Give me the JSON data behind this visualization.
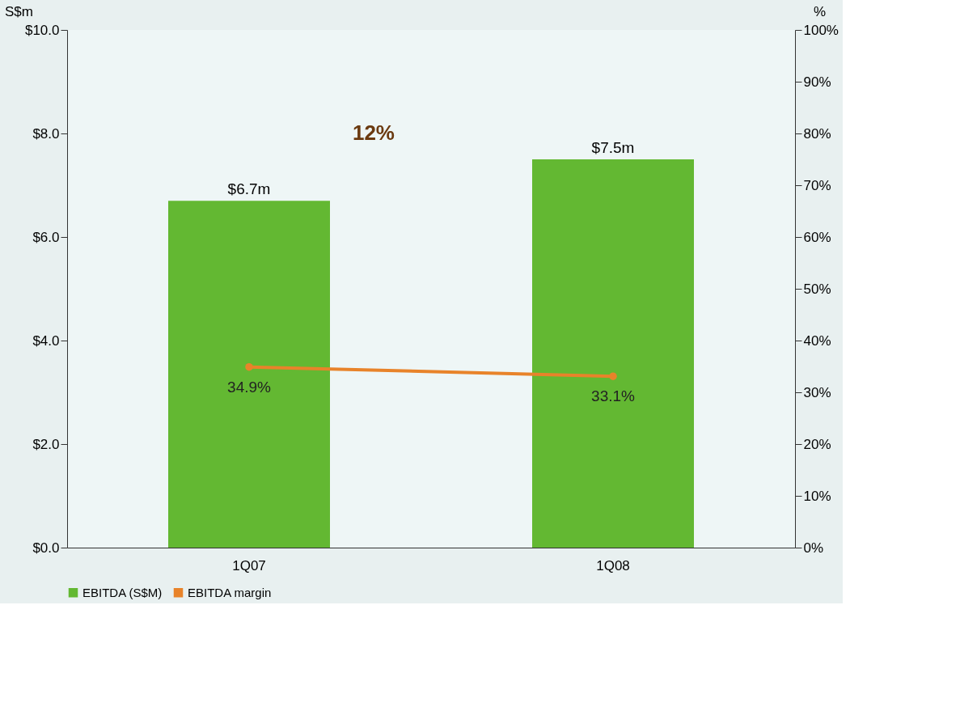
{
  "chart_data": {
    "type": "bar",
    "categories": [
      "1Q07",
      "1Q08"
    ],
    "ylabel": "S$m",
    "y2label": "%",
    "series": [
      {
        "name": "EBITDA (S$M)",
        "color": "#63b832",
        "values": [
          6.7,
          7.5
        ],
        "value_labels": [
          "$6.7m",
          "$7.5m"
        ]
      },
      {
        "name": "EBITDA margin",
        "type": "line",
        "axis": "y2",
        "color": "#e8832a",
        "values": [
          34.9,
          33.1
        ],
        "value_labels": [
          "34.9%",
          "33.1%"
        ]
      }
    ],
    "ylim": [
      0,
      10
    ],
    "yticks": [
      {
        "value": 0,
        "label": "$0.0"
      },
      {
        "value": 2,
        "label": "$2.0"
      },
      {
        "value": 4,
        "label": "$4.0"
      },
      {
        "value": 6,
        "label": "$6.0"
      },
      {
        "value": 8,
        "label": "$8.0"
      },
      {
        "value": 10,
        "label": "$10.0"
      }
    ],
    "y2lim": [
      0,
      100
    ],
    "y2ticks": [
      {
        "value": 0,
        "label": "0%"
      },
      {
        "value": 10,
        "label": "10%"
      },
      {
        "value": 20,
        "label": "20%"
      },
      {
        "value": 30,
        "label": "30%"
      },
      {
        "value": 40,
        "label": "40%"
      },
      {
        "value": 50,
        "label": "50%"
      },
      {
        "value": 60,
        "label": "60%"
      },
      {
        "value": 70,
        "label": "70%"
      },
      {
        "value": 80,
        "label": "80%"
      },
      {
        "value": 90,
        "label": "90%"
      },
      {
        "value": 100,
        "label": "100%"
      }
    ],
    "annotations": [
      "12%"
    ],
    "legend": "bottom",
    "grid": false,
    "marker": "circle",
    "line_style": "solid"
  }
}
